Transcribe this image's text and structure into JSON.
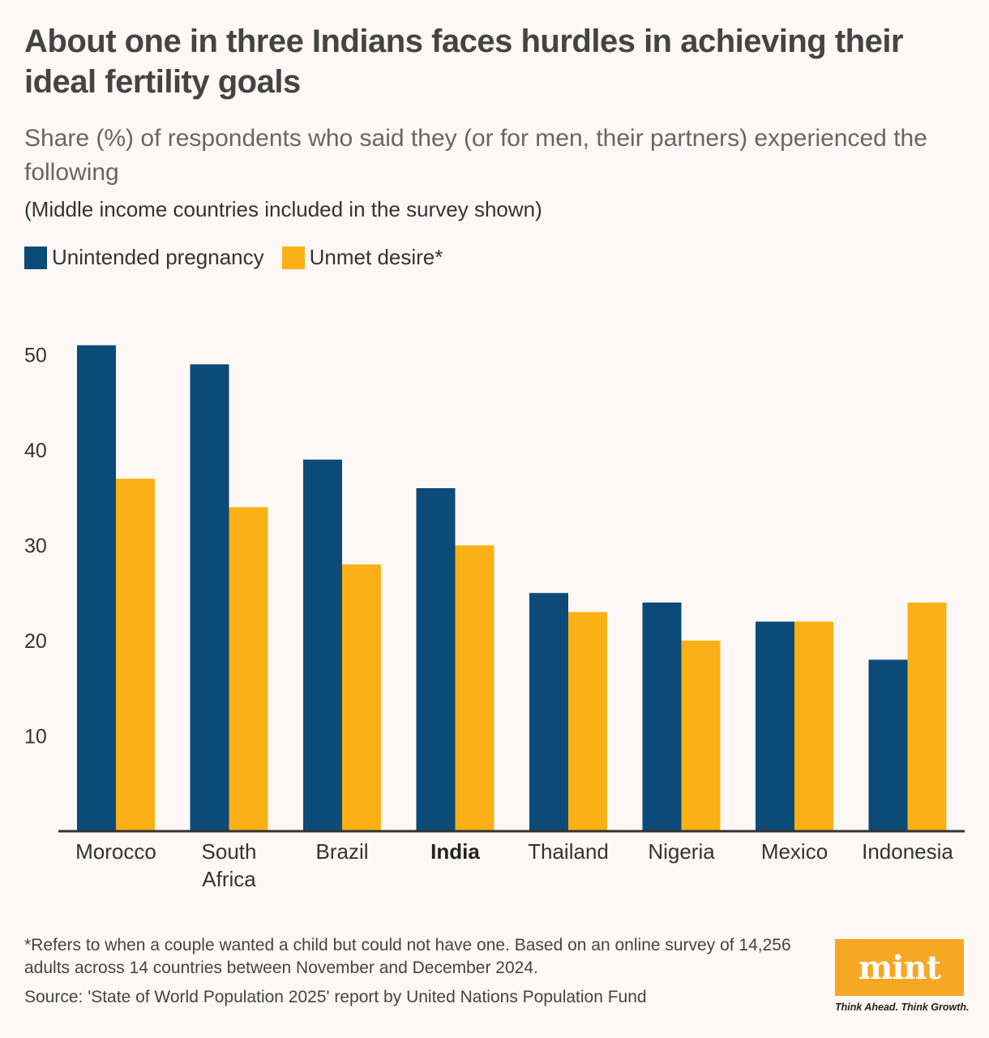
{
  "title": "About one in three Indians faces hurdles in achieving their ideal fertility goals",
  "subtitle": "Share (%) of respondents who said they (or for men, their partners) experienced the following",
  "note": "(Middle income countries included in the survey shown)",
  "legend": [
    {
      "label": "Unintended pregnancy",
      "color": "#0c4a78"
    },
    {
      "label": "Unmet desire*",
      "color": "#fbb116"
    }
  ],
  "chart_data": {
    "type": "bar",
    "categories": [
      "Morocco",
      "South Africa",
      "Brazil",
      "India",
      "Thailand",
      "Nigeria",
      "Mexico",
      "Indonesia"
    ],
    "highlight_category": "India",
    "series": [
      {
        "name": "Unintended pregnancy",
        "color": "#0c4a78",
        "values": [
          51,
          49,
          39,
          36,
          25,
          24,
          22,
          18
        ]
      },
      {
        "name": "Unmet desire*",
        "color": "#fbb116",
        "values": [
          37,
          34,
          28,
          30,
          23,
          20,
          22,
          24
        ]
      }
    ],
    "yticks": [
      10,
      20,
      30,
      40,
      50
    ],
    "ylim": [
      0,
      55
    ],
    "grid": false,
    "legend_position": "top-left"
  },
  "footnote": "*Refers to when a couple wanted a child but could not have one. Based on an online survey of 14,256 adults across 14 countries between November and December 2024.",
  "source": "Source: 'State of World Population 2025' report by United Nations Population Fund",
  "brand": {
    "logo_text": "mint",
    "tagline": "Think Ahead. Think Growth."
  }
}
